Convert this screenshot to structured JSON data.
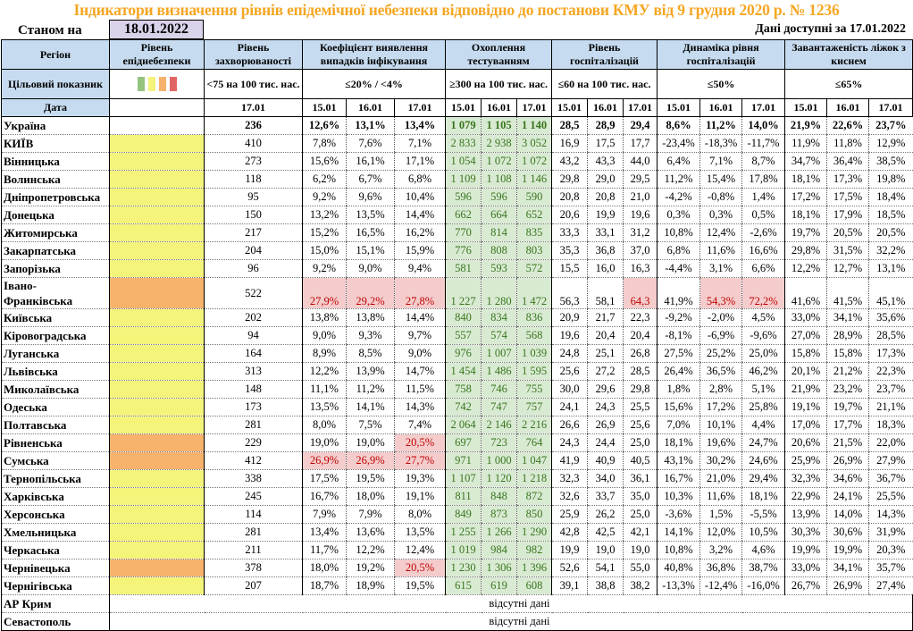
{
  "title": "Індикатори визначення рівнів епідемічної небезпеки відповідно до постанови КМУ від 9 грудня 2020 р. № 1236",
  "as_of_label": "Станом на",
  "as_of_date": "18.01.2022",
  "available": "Дані доступні за 17.01.2022",
  "headers": {
    "region": "Регіон",
    "level": "Рівень епіднебезпеки",
    "incidence": "Рівень захворюваності",
    "coef": "Коефіцієнт виявлення випадків інфікування",
    "testing": "Охоплення тестуванням",
    "hosp": "Рівень госпіталізацій",
    "dyn": "Динаміка рівня госпіталізацій",
    "beds": "Завантаженість ліжок з киснем"
  },
  "targets": {
    "label": "Цільовий показник",
    "incidence": "<75 на 100 тис. нас.",
    "coef": "≤20% / <4%",
    "testing": "≥300 на 100 тис. нас.",
    "hosp": "≤60 на 100 тис. нас.",
    "dyn": "≤50%",
    "beds": "≤65%"
  },
  "level_colors": [
    "#93c47d",
    "#f4f47a",
    "#f6b26b",
    "#e06666"
  ],
  "date_row": {
    "label": "Дата",
    "incidence": "17.01",
    "dates": [
      "15.01",
      "16.01",
      "17.01"
    ]
  },
  "ukraine": {
    "name": "Україна",
    "incidence": "236",
    "coef": [
      "12,6%",
      "13,1%",
      "13,4%"
    ],
    "testing": [
      "1 079",
      "1 105",
      "1 140"
    ],
    "hosp": [
      "28,5",
      "28,9",
      "29,4"
    ],
    "dyn": [
      "8,6%",
      "11,2%",
      "14,0%"
    ],
    "beds": [
      "21,9%",
      "22,6%",
      "23,7%"
    ]
  },
  "rows": [
    {
      "name": "КИЇВ",
      "level": "yellow",
      "incidence": "410",
      "coef": [
        "7,8%",
        "7,6%",
        "7,1%"
      ],
      "testing": [
        "2 833",
        "2 938",
        "3 052"
      ],
      "hosp": [
        "16,9",
        "17,5",
        "17,7"
      ],
      "dyn": [
        "-23,4%",
        "-18,3%",
        "-11,7%"
      ],
      "beds": [
        "11,9%",
        "11,8%",
        "12,9%"
      ]
    },
    {
      "name": "Вінницька",
      "level": "yellow",
      "incidence": "273",
      "coef": [
        "15,6%",
        "16,1%",
        "17,1%"
      ],
      "testing": [
        "1 054",
        "1 072",
        "1 072"
      ],
      "hosp": [
        "43,2",
        "43,3",
        "44,0"
      ],
      "dyn": [
        "6,4%",
        "7,1%",
        "8,7%"
      ],
      "beds": [
        "34,7%",
        "36,4%",
        "38,5%"
      ]
    },
    {
      "name": "Волинська",
      "level": "yellow",
      "incidence": "118",
      "coef": [
        "6,2%",
        "6,7%",
        "6,8%"
      ],
      "testing": [
        "1 109",
        "1 108",
        "1 146"
      ],
      "hosp": [
        "29,8",
        "29,0",
        "29,5"
      ],
      "dyn": [
        "11,2%",
        "15,4%",
        "17,8%"
      ],
      "beds": [
        "18,1%",
        "17,3%",
        "19,8%"
      ]
    },
    {
      "name": "Дніпропетровська",
      "level": "yellow",
      "incidence": "95",
      "coef": [
        "9,2%",
        "9,6%",
        "10,4%"
      ],
      "testing": [
        "596",
        "596",
        "590"
      ],
      "hosp": [
        "20,8",
        "20,8",
        "21,0"
      ],
      "dyn": [
        "-4,2%",
        "-0,8%",
        "1,4%"
      ],
      "beds": [
        "17,2%",
        "17,5%",
        "18,4%"
      ]
    },
    {
      "name": "Донецька",
      "level": "yellow",
      "incidence": "150",
      "coef": [
        "13,2%",
        "13,5%",
        "14,4%"
      ],
      "testing": [
        "662",
        "664",
        "652"
      ],
      "hosp": [
        "20,6",
        "19,9",
        "19,6"
      ],
      "dyn": [
        "0,3%",
        "0,3%",
        "0,5%"
      ],
      "beds": [
        "18,1%",
        "17,9%",
        "18,5%"
      ]
    },
    {
      "name": "Житомирська",
      "level": "yellow",
      "incidence": "217",
      "coef": [
        "15,2%",
        "16,5%",
        "16,2%"
      ],
      "testing": [
        "770",
        "814",
        "835"
      ],
      "hosp": [
        "33,3",
        "33,1",
        "31,2"
      ],
      "dyn": [
        "10,8%",
        "12,4%",
        "-2,6%"
      ],
      "beds": [
        "19,7%",
        "20,5%",
        "20,5%"
      ]
    },
    {
      "name": "Закарпатська",
      "level": "yellow",
      "incidence": "204",
      "coef": [
        "15,0%",
        "15,1%",
        "15,9%"
      ],
      "testing": [
        "776",
        "808",
        "803"
      ],
      "hosp": [
        "35,3",
        "36,8",
        "37,0"
      ],
      "dyn": [
        "6,8%",
        "11,6%",
        "16,6%"
      ],
      "beds": [
        "29,8%",
        "31,5%",
        "32,2%"
      ]
    },
    {
      "name": "Запорізька",
      "level": "yellow",
      "incidence": "96",
      "coef": [
        "9,2%",
        "9,0%",
        "9,4%"
      ],
      "testing": [
        "581",
        "593",
        "572"
      ],
      "hosp": [
        "15,5",
        "16,0",
        "16,3"
      ],
      "dyn": [
        "-4,4%",
        "3,1%",
        "6,6%"
      ],
      "beds": [
        "12,2%",
        "12,7%",
        "13,1%"
      ]
    },
    {
      "name": "Івано-Франківська",
      "level": "orange",
      "incidence": "522",
      "coef": [
        "27,9%",
        "29,2%",
        "27,8%"
      ],
      "testing": [
        "1 227",
        "1 280",
        "1 472"
      ],
      "hosp": [
        "56,3",
        "58,1",
        "64,3"
      ],
      "dyn": [
        "41,9%",
        "54,3%",
        "72,2%"
      ],
      "beds": [
        "41,6%",
        "41,5%",
        "45,1%"
      ],
      "hl": {
        "coef": [
          0,
          1,
          2
        ],
        "hosp": [
          2
        ],
        "dyn": [
          1,
          2
        ]
      }
    },
    {
      "name": "Київська",
      "level": "yellow",
      "incidence": "202",
      "coef": [
        "13,8%",
        "13,8%",
        "14,4%"
      ],
      "testing": [
        "840",
        "834",
        "836"
      ],
      "hosp": [
        "20,9",
        "21,7",
        "22,3"
      ],
      "dyn": [
        "-9,2%",
        "-2,0%",
        "4,5%"
      ],
      "beds": [
        "33,0%",
        "34,1%",
        "35,6%"
      ]
    },
    {
      "name": "Кіровоградська",
      "level": "yellow",
      "incidence": "94",
      "coef": [
        "9,0%",
        "9,3%",
        "9,7%"
      ],
      "testing": [
        "557",
        "574",
        "568"
      ],
      "hosp": [
        "19,6",
        "20,4",
        "20,4"
      ],
      "dyn": [
        "-8,1%",
        "-6,9%",
        "-9,6%"
      ],
      "beds": [
        "27,0%",
        "28,9%",
        "28,5%"
      ]
    },
    {
      "name": "Луганська",
      "level": "yellow",
      "incidence": "164",
      "coef": [
        "8,9%",
        "8,5%",
        "9,0%"
      ],
      "testing": [
        "976",
        "1 007",
        "1 039"
      ],
      "hosp": [
        "24,8",
        "25,1",
        "26,8"
      ],
      "dyn": [
        "27,5%",
        "25,2%",
        "25,0%"
      ],
      "beds": [
        "15,8%",
        "15,8%",
        "17,3%"
      ]
    },
    {
      "name": "Львівська",
      "level": "yellow",
      "incidence": "313",
      "coef": [
        "12,2%",
        "13,9%",
        "14,7%"
      ],
      "testing": [
        "1 454",
        "1 486",
        "1 595"
      ],
      "hosp": [
        "25,6",
        "27,2",
        "28,5"
      ],
      "dyn": [
        "26,4%",
        "36,5%",
        "46,2%"
      ],
      "beds": [
        "20,1%",
        "21,2%",
        "22,3%"
      ]
    },
    {
      "name": "Миколаївська",
      "level": "yellow",
      "incidence": "148",
      "coef": [
        "11,1%",
        "11,2%",
        "11,5%"
      ],
      "testing": [
        "758",
        "746",
        "755"
      ],
      "hosp": [
        "30,0",
        "29,6",
        "29,8"
      ],
      "dyn": [
        "1,8%",
        "2,8%",
        "5,1%"
      ],
      "beds": [
        "21,9%",
        "23,2%",
        "23,7%"
      ]
    },
    {
      "name": "Одеська",
      "level": "yellow",
      "incidence": "173",
      "coef": [
        "13,5%",
        "14,1%",
        "14,3%"
      ],
      "testing": [
        "742",
        "747",
        "757"
      ],
      "hosp": [
        "24,1",
        "24,3",
        "25,5"
      ],
      "dyn": [
        "15,6%",
        "17,2%",
        "25,8%"
      ],
      "beds": [
        "19,1%",
        "19,7%",
        "21,1%"
      ]
    },
    {
      "name": "Полтавська",
      "level": "yellow",
      "incidence": "281",
      "coef": [
        "8,0%",
        "7,5%",
        "7,4%"
      ],
      "testing": [
        "2 064",
        "2 146",
        "2 216"
      ],
      "hosp": [
        "26,6",
        "26,9",
        "25,6"
      ],
      "dyn": [
        "7,0%",
        "10,1%",
        "4,4%"
      ],
      "beds": [
        "17,0%",
        "17,7%",
        "18,3%"
      ]
    },
    {
      "name": "Рівненська",
      "level": "orange",
      "incidence": "229",
      "coef": [
        "19,0%",
        "19,0%",
        "20,5%"
      ],
      "testing": [
        "697",
        "723",
        "764"
      ],
      "hosp": [
        "24,3",
        "24,4",
        "25,0"
      ],
      "dyn": [
        "18,1%",
        "19,6%",
        "24,7%"
      ],
      "beds": [
        "20,6%",
        "21,5%",
        "22,0%"
      ],
      "hl": {
        "coef": [
          2
        ]
      }
    },
    {
      "name": "Сумська",
      "level": "orange",
      "incidence": "412",
      "coef": [
        "26,9%",
        "26,9%",
        "27,7%"
      ],
      "testing": [
        "971",
        "1 000",
        "1 047"
      ],
      "hosp": [
        "41,9",
        "40,9",
        "40,5"
      ],
      "dyn": [
        "43,1%",
        "30,2%",
        "24,6%"
      ],
      "beds": [
        "25,9%",
        "26,9%",
        "27,9%"
      ],
      "hl": {
        "coef": [
          0,
          1,
          2
        ]
      }
    },
    {
      "name": "Тернопільська",
      "level": "yellow",
      "incidence": "338",
      "coef": [
        "17,5%",
        "19,5%",
        "19,3%"
      ],
      "testing": [
        "1 107",
        "1 120",
        "1 218"
      ],
      "hosp": [
        "32,3",
        "34,0",
        "36,1"
      ],
      "dyn": [
        "16,7%",
        "21,0%",
        "29,4%"
      ],
      "beds": [
        "32,3%",
        "34,6%",
        "36,7%"
      ]
    },
    {
      "name": "Харківська",
      "level": "yellow",
      "incidence": "245",
      "coef": [
        "16,7%",
        "18,0%",
        "19,1%"
      ],
      "testing": [
        "811",
        "848",
        "872"
      ],
      "hosp": [
        "32,6",
        "33,7",
        "35,0"
      ],
      "dyn": [
        "10,3%",
        "11,6%",
        "18,1%"
      ],
      "beds": [
        "22,9%",
        "24,1%",
        "25,5%"
      ]
    },
    {
      "name": "Херсонська",
      "level": "yellow",
      "incidence": "114",
      "coef": [
        "7,9%",
        "7,9%",
        "8,0%"
      ],
      "testing": [
        "849",
        "873",
        "850"
      ],
      "hosp": [
        "25,9",
        "26,2",
        "25,0"
      ],
      "dyn": [
        "-3,6%",
        "1,5%",
        "-5,5%"
      ],
      "beds": [
        "13,9%",
        "14,0%",
        "14,3%"
      ]
    },
    {
      "name": "Хмельницька",
      "level": "yellow",
      "incidence": "281",
      "coef": [
        "13,4%",
        "13,6%",
        "13,5%"
      ],
      "testing": [
        "1 255",
        "1 266",
        "1 290"
      ],
      "hosp": [
        "42,8",
        "42,5",
        "42,1"
      ],
      "dyn": [
        "14,1%",
        "12,0%",
        "10,5%"
      ],
      "beds": [
        "30,3%",
        "30,6%",
        "31,9%"
      ]
    },
    {
      "name": "Черкаська",
      "level": "yellow",
      "incidence": "211",
      "coef": [
        "11,7%",
        "12,2%",
        "12,4%"
      ],
      "testing": [
        "1 019",
        "984",
        "982"
      ],
      "hosp": [
        "19,9",
        "19,0",
        "19,0"
      ],
      "dyn": [
        "10,8%",
        "3,2%",
        "4,6%"
      ],
      "beds": [
        "19,9%",
        "19,9%",
        "20,3%"
      ]
    },
    {
      "name": "Чернівецька",
      "level": "orange",
      "incidence": "378",
      "coef": [
        "18,0%",
        "19,2%",
        "20,5%"
      ],
      "testing": [
        "1 230",
        "1 306",
        "1 396"
      ],
      "hosp": [
        "52,6",
        "54,1",
        "55,0"
      ],
      "dyn": [
        "40,8%",
        "36,8%",
        "38,7%"
      ],
      "beds": [
        "33,0%",
        "34,1%",
        "35,7%"
      ],
      "hl": {
        "coef": [
          2
        ]
      }
    },
    {
      "name": "Чернігівська",
      "level": "yellow",
      "incidence": "207",
      "coef": [
        "18,7%",
        "18,9%",
        "19,5%"
      ],
      "testing": [
        "615",
        "619",
        "608"
      ],
      "hosp": [
        "39,1",
        "38,8",
        "38,2"
      ],
      "dyn": [
        "-13,3%",
        "-12,4%",
        "-16,0%"
      ],
      "beds": [
        "26,7%",
        "26,9%",
        "27,4%"
      ]
    }
  ],
  "no_data": [
    {
      "name": "АР Крим",
      "text": "відсутні дані"
    },
    {
      "name": "Севастополь",
      "text": "відсутні дані"
    }
  ],
  "colors": {
    "yellow": "#f4f47a",
    "orange": "#f7b26b",
    "title": "#f5a623",
    "header": "#c6dbef",
    "testing_bg": "#d9ead3",
    "alert_bg": "#f4cccc"
  }
}
